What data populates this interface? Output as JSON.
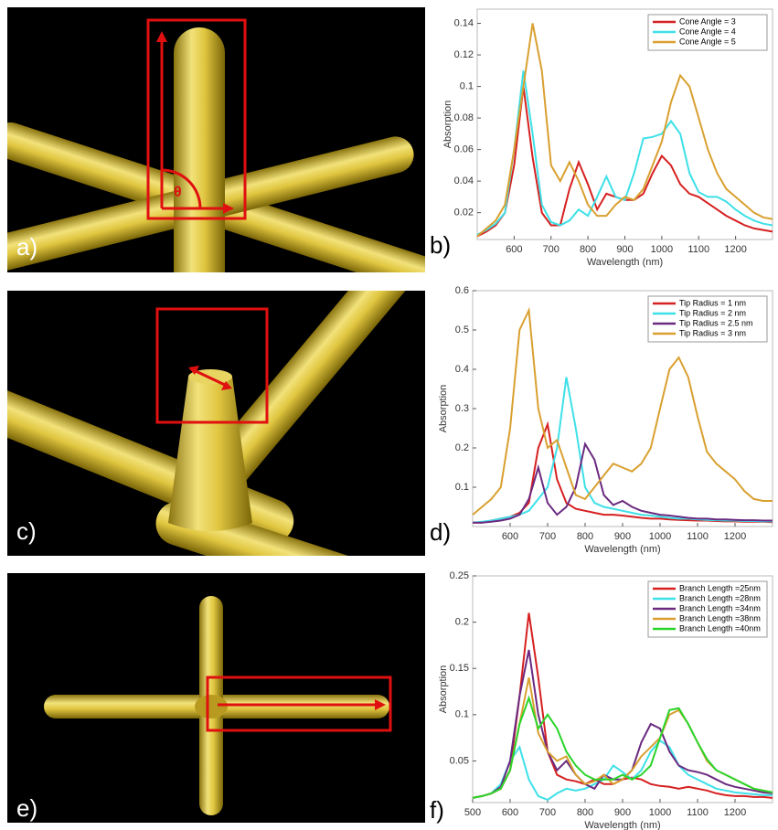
{
  "panel_labels": [
    "a)",
    "b)",
    "c)",
    "d)",
    "e)",
    "f)"
  ],
  "angle_symbol": "θ",
  "chart_data": [
    {
      "type": "line",
      "xlabel": "Wavelength (nm)",
      "ylabel": "Absorption",
      "legend": "upper right",
      "xlim": [
        500,
        1300
      ],
      "ylim": [
        0.003,
        0.149
      ],
      "xticks": [
        600,
        700,
        800,
        900,
        1000,
        1100,
        1200
      ],
      "yticks": [
        0.02,
        0.04,
        0.06,
        0.08,
        0.1,
        0.12,
        0.14
      ],
      "x": [
        500,
        525,
        550,
        575,
        600,
        625,
        650,
        675,
        700,
        725,
        750,
        775,
        800,
        825,
        850,
        875,
        900,
        925,
        950,
        975,
        1000,
        1025,
        1050,
        1075,
        1100,
        1125,
        1150,
        1175,
        1200,
        1225,
        1250,
        1275,
        1300
      ],
      "series": [
        {
          "name": "Cone Angle = 3",
          "color": "#d62020",
          "values": [
            0.005,
            0.008,
            0.012,
            0.02,
            0.05,
            0.1,
            0.055,
            0.02,
            0.012,
            0.012,
            0.035,
            0.052,
            0.038,
            0.022,
            0.032,
            0.03,
            0.028,
            0.028,
            0.032,
            0.045,
            0.056,
            0.05,
            0.038,
            0.032,
            0.03,
            0.026,
            0.022,
            0.018,
            0.015,
            0.012,
            0.01,
            0.009,
            0.008
          ]
        },
        {
          "name": "Cone Angle = 4",
          "color": "#3ee0e8",
          "values": [
            0.006,
            0.009,
            0.013,
            0.02,
            0.06,
            0.11,
            0.07,
            0.025,
            0.014,
            0.012,
            0.015,
            0.022,
            0.018,
            0.03,
            0.043,
            0.03,
            0.028,
            0.045,
            0.067,
            0.068,
            0.07,
            0.078,
            0.07,
            0.045,
            0.033,
            0.03,
            0.03,
            0.027,
            0.022,
            0.018,
            0.015,
            0.013,
            0.012
          ]
        },
        {
          "name": "Cone Angle = 5",
          "color": "#d9a030",
          "values": [
            0.005,
            0.01,
            0.015,
            0.025,
            0.06,
            0.1,
            0.14,
            0.11,
            0.05,
            0.04,
            0.052,
            0.04,
            0.025,
            0.018,
            0.018,
            0.025,
            0.03,
            0.028,
            0.035,
            0.05,
            0.065,
            0.09,
            0.107,
            0.1,
            0.08,
            0.06,
            0.045,
            0.035,
            0.03,
            0.025,
            0.02,
            0.017,
            0.016
          ]
        }
      ]
    },
    {
      "type": "line",
      "xlabel": "Wavelength (nm)",
      "ylabel": "Absorption",
      "legend": "upper right",
      "xlim": [
        500,
        1300
      ],
      "ylim": [
        0,
        0.6
      ],
      "xticks": [
        600,
        700,
        800,
        900,
        1000,
        1100,
        1200
      ],
      "yticks": [
        0.1,
        0.2,
        0.3,
        0.4,
        0.5,
        0.6
      ],
      "x": [
        500,
        525,
        550,
        575,
        600,
        625,
        650,
        675,
        700,
        725,
        750,
        775,
        800,
        825,
        850,
        875,
        900,
        925,
        950,
        975,
        1000,
        1025,
        1050,
        1075,
        1100,
        1125,
        1150,
        1175,
        1200,
        1225,
        1250,
        1275,
        1300
      ],
      "series": [
        {
          "name": "Tip Radius = 1 nm",
          "color": "#d62020",
          "values": [
            0.01,
            0.01,
            0.015,
            0.02,
            0.025,
            0.035,
            0.06,
            0.2,
            0.26,
            0.12,
            0.06,
            0.045,
            0.04,
            0.035,
            0.03,
            0.03,
            0.028,
            0.025,
            0.022,
            0.02,
            0.02,
            0.018,
            0.017,
            0.016,
            0.015,
            0.015,
            0.014,
            0.013,
            0.013,
            0.012,
            0.012,
            0.012,
            0.011
          ]
        },
        {
          "name": "Tip Radius = 2 nm",
          "color": "#3ee0e8",
          "values": [
            0.01,
            0.012,
            0.015,
            0.02,
            0.025,
            0.03,
            0.04,
            0.07,
            0.1,
            0.2,
            0.38,
            0.25,
            0.1,
            0.06,
            0.05,
            0.045,
            0.04,
            0.035,
            0.03,
            0.028,
            0.025,
            0.022,
            0.02,
            0.02,
            0.018,
            0.017,
            0.016,
            0.015,
            0.015,
            0.014,
            0.014,
            0.013,
            0.013
          ]
        },
        {
          "name": "Tip Radius = 2.5 nm",
          "color": "#6b2a80",
          "values": [
            0.01,
            0.01,
            0.012,
            0.015,
            0.02,
            0.03,
            0.07,
            0.15,
            0.06,
            0.03,
            0.05,
            0.1,
            0.21,
            0.17,
            0.08,
            0.055,
            0.065,
            0.05,
            0.04,
            0.035,
            0.03,
            0.028,
            0.025,
            0.022,
            0.02,
            0.02,
            0.018,
            0.018,
            0.017,
            0.016,
            0.016,
            0.015,
            0.015
          ]
        },
        {
          "name": "Tip Radius = 3 nm",
          "color": "#d9a030",
          "values": [
            0.03,
            0.05,
            0.07,
            0.1,
            0.25,
            0.5,
            0.55,
            0.3,
            0.2,
            0.22,
            0.15,
            0.08,
            0.07,
            0.1,
            0.13,
            0.16,
            0.15,
            0.14,
            0.16,
            0.2,
            0.3,
            0.4,
            0.43,
            0.38,
            0.28,
            0.19,
            0.16,
            0.14,
            0.12,
            0.09,
            0.07,
            0.065,
            0.065
          ]
        }
      ]
    },
    {
      "type": "line",
      "xlabel": "Wavelength (nm)",
      "ylabel": "Absorption",
      "legend": "upper right",
      "xlim": [
        500,
        1300
      ],
      "ylim": [
        0.005,
        0.25
      ],
      "xticks": [
        500,
        600,
        700,
        800,
        900,
        1000,
        1100,
        1200
      ],
      "yticks": [
        0.05,
        0.1,
        0.15,
        0.2,
        0.25
      ],
      "x": [
        500,
        525,
        550,
        575,
        600,
        625,
        650,
        675,
        700,
        725,
        750,
        775,
        800,
        825,
        850,
        875,
        900,
        925,
        950,
        975,
        1000,
        1025,
        1050,
        1075,
        1100,
        1125,
        1150,
        1175,
        1200,
        1225,
        1250,
        1275,
        1300
      ],
      "series": [
        {
          "name": "Branch Length =25nm",
          "color": "#d62020",
          "values": [
            0.01,
            0.012,
            0.015,
            0.02,
            0.04,
            0.12,
            0.21,
            0.14,
            0.06,
            0.035,
            0.03,
            0.028,
            0.025,
            0.03,
            0.025,
            0.025,
            0.03,
            0.032,
            0.03,
            0.025,
            0.023,
            0.022,
            0.02,
            0.022,
            0.02,
            0.018,
            0.015,
            0.013,
            0.012,
            0.012,
            0.011,
            0.011,
            0.01
          ]
        },
        {
          "name": "Branch Length =28nm",
          "color": "#3ee0e8",
          "values": [
            0.01,
            0.012,
            0.015,
            0.025,
            0.05,
            0.065,
            0.03,
            0.012,
            0.008,
            0.015,
            0.02,
            0.018,
            0.02,
            0.025,
            0.03,
            0.045,
            0.038,
            0.03,
            0.04,
            0.06,
            0.072,
            0.065,
            0.045,
            0.035,
            0.03,
            0.025,
            0.02,
            0.018,
            0.016,
            0.015,
            0.014,
            0.013,
            0.013
          ]
        },
        {
          "name": "Branch Length =34nm",
          "color": "#6b2a80",
          "values": [
            0.01,
            0.012,
            0.015,
            0.022,
            0.05,
            0.12,
            0.17,
            0.1,
            0.06,
            0.04,
            0.05,
            0.035,
            0.025,
            0.02,
            0.035,
            0.03,
            0.03,
            0.04,
            0.07,
            0.09,
            0.085,
            0.06,
            0.045,
            0.04,
            0.038,
            0.035,
            0.03,
            0.025,
            0.022,
            0.02,
            0.018,
            0.016,
            0.015
          ]
        },
        {
          "name": "Branch Length =38nm",
          "color": "#d9a030",
          "values": [
            0.01,
            0.012,
            0.015,
            0.02,
            0.04,
            0.09,
            0.14,
            0.08,
            0.06,
            0.05,
            0.055,
            0.035,
            0.025,
            0.028,
            0.035,
            0.025,
            0.03,
            0.04,
            0.055,
            0.065,
            0.075,
            0.1,
            0.105,
            0.09,
            0.07,
            0.05,
            0.04,
            0.035,
            0.03,
            0.025,
            0.02,
            0.018,
            0.016
          ]
        },
        {
          "name": "Branch Length =40nm",
          "color": "#2ad42a",
          "values": [
            0.01,
            0.012,
            0.015,
            0.02,
            0.04,
            0.09,
            0.118,
            0.085,
            0.1,
            0.085,
            0.06,
            0.045,
            0.035,
            0.03,
            0.03,
            0.03,
            0.035,
            0.03,
            0.035,
            0.045,
            0.075,
            0.105,
            0.107,
            0.09,
            0.07,
            0.052,
            0.04,
            0.035,
            0.03,
            0.025,
            0.02,
            0.018,
            0.016
          ]
        }
      ]
    }
  ]
}
